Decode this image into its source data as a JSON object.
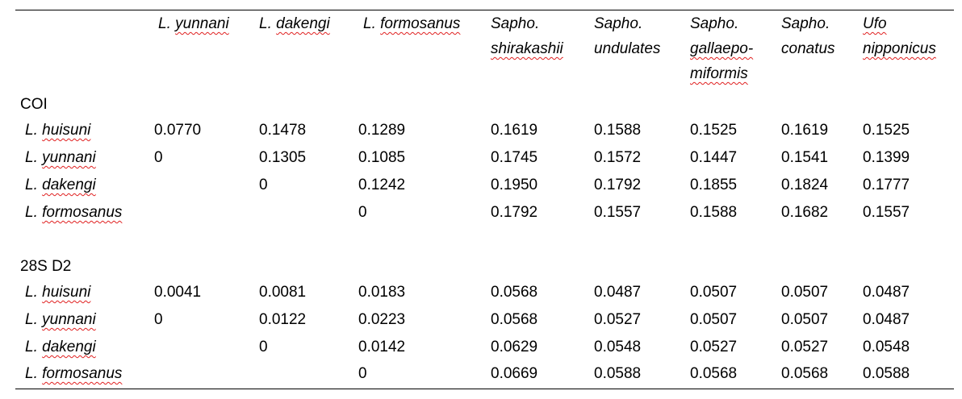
{
  "columns": [
    {
      "abbr": "L.",
      "name": "yunnani"
    },
    {
      "abbr": "L.",
      "name": "dakengi"
    },
    {
      "abbr": "L.",
      "name": "formosanus"
    },
    {
      "abbr": "Sapho.",
      "name": "shirakashii"
    },
    {
      "abbr": "Sapho.",
      "name": "undulates"
    },
    {
      "abbr": "Sapho.",
      "name": "gallaepo-",
      "name2": "miformis"
    },
    {
      "abbr": "Sapho.",
      "name": "conatus"
    },
    {
      "abbr": "Ufo",
      "name": "nipponicus"
    }
  ],
  "sections": [
    {
      "title": "COI",
      "rows": [
        {
          "abbr": "L.",
          "name": "huisuni",
          "values": [
            "0.0770",
            "0.1478",
            "0.1289",
            "0.1619",
            "0.1588",
            "0.1525",
            "0.1619",
            "0.1525"
          ]
        },
        {
          "abbr": "L.",
          "name": "yunnani",
          "values": [
            "0",
            "0.1305",
            "0.1085",
            "0.1745",
            "0.1572",
            "0.1447",
            "0.1541",
            "0.1399"
          ]
        },
        {
          "abbr": "L.",
          "name": "dakengi",
          "values": [
            "",
            "0",
            "0.1242",
            "0.1950",
            "0.1792",
            "0.1855",
            "0.1824",
            "0.1777"
          ]
        },
        {
          "abbr": "L.",
          "name": "formosanus",
          "values": [
            "",
            "",
            "0",
            "0.1792",
            "0.1557",
            "0.1588",
            "0.1682",
            "0.1557"
          ]
        }
      ]
    },
    {
      "title": "28S D2",
      "rows": [
        {
          "abbr": "L.",
          "name": "huisuni",
          "values": [
            "0.0041",
            "0.0081",
            "0.0183",
            "0.0568",
            "0.0487",
            "0.0507",
            "0.0507",
            "0.0487"
          ]
        },
        {
          "abbr": "L.",
          "name": "yunnani",
          "values": [
            "0",
            "0.0122",
            "0.0223",
            "0.0568",
            "0.0527",
            "0.0507",
            "0.0507",
            "0.0487"
          ]
        },
        {
          "abbr": "L.",
          "name": "dakengi",
          "values": [
            "",
            "0",
            "0.0142",
            "0.0629",
            "0.0548",
            "0.0527",
            "0.0527",
            "0.0548"
          ]
        },
        {
          "abbr": "L.",
          "name": "formosanus",
          "values": [
            "",
            "",
            "0",
            "0.0669",
            "0.0588",
            "0.0568",
            "0.0568",
            "0.0588"
          ]
        }
      ]
    }
  ],
  "colors": {
    "spellcheck_underline": "#e02020",
    "rule": "#000000"
  }
}
